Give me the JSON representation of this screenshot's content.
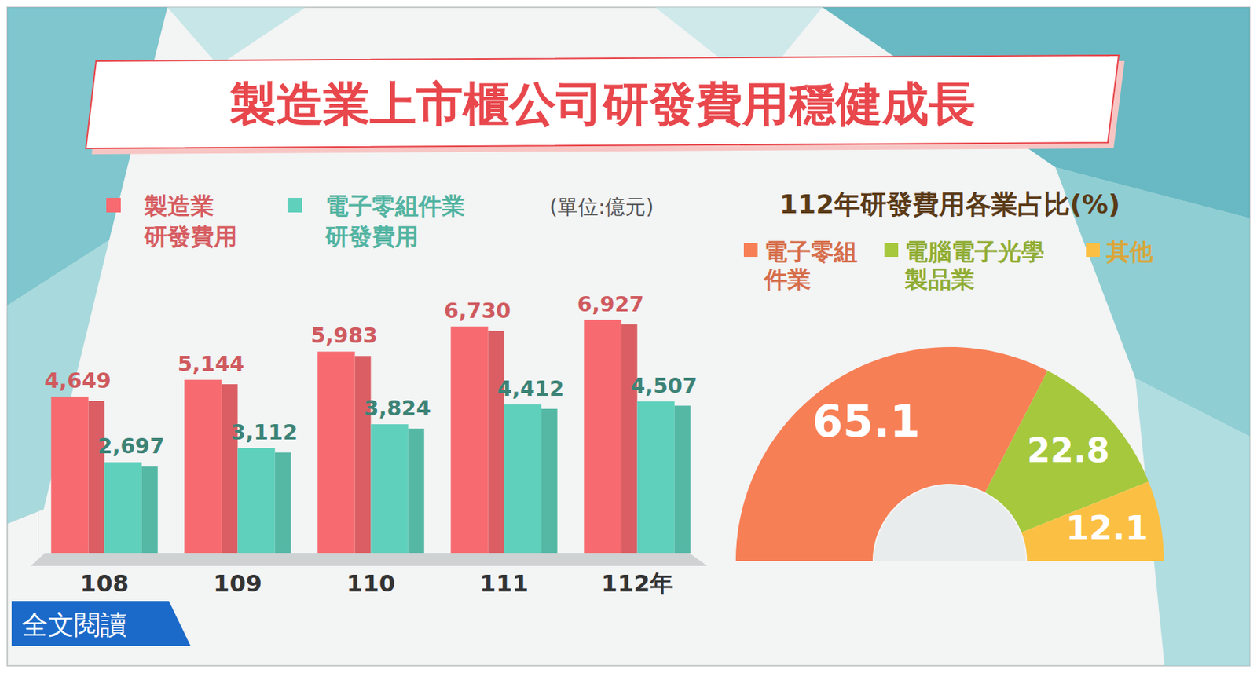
{
  "title": "製造業上市櫃公司研發費用穩健成長",
  "link_text": "全文閱讀",
  "chart_data": [
    {
      "type": "bar",
      "y_label": "(單位:億元)",
      "categories": [
        "108",
        "109",
        "110",
        "111",
        "112年"
      ],
      "series": [
        {
          "name": "製造業\n研發費用",
          "color": "#f76b70",
          "values": [
            4649,
            5144,
            5983,
            6730,
            6927
          ],
          "value_labels": [
            "4,649",
            "5,144",
            "5,983",
            "6,730",
            "6,927"
          ]
        },
        {
          "name": "電子零組件業\n研發費用",
          "color": "#5fd0bb",
          "values": [
            2697,
            3112,
            3824,
            4412,
            4507
          ],
          "value_labels": [
            "2,697",
            "3,112",
            "3,824",
            "4,412",
            "4,507"
          ]
        }
      ],
      "ylim": [
        0,
        8000
      ],
      "data_labels": true,
      "tick_labels": "x",
      "legend": "top"
    },
    {
      "type": "pie",
      "title": "112年研發費用各業占比(%)",
      "categories": [
        "電子零組\n件業",
        "電腦電子光學\n製品業",
        "其他"
      ],
      "values": [
        65.1,
        22.8,
        12.1
      ],
      "colors": [
        "#f77f55",
        "#a6c83c",
        "#fbc043"
      ],
      "data_labels": true,
      "legend": "top"
    }
  ]
}
